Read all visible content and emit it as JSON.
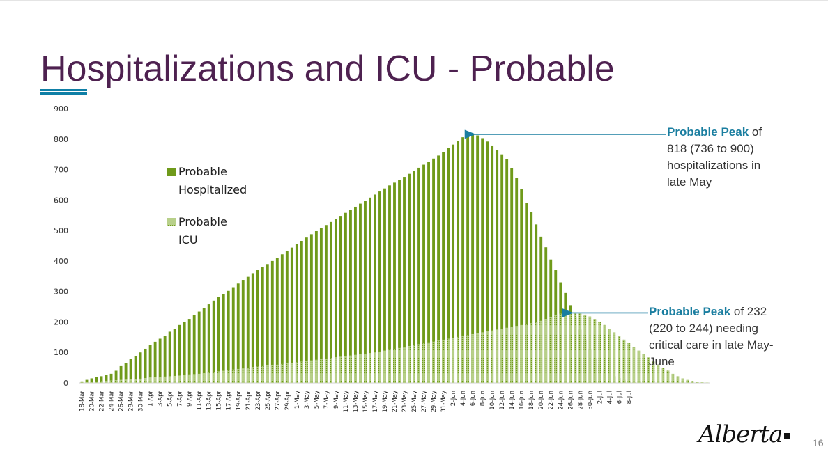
{
  "slide": {
    "title": "Hospitalizations and ICU - Probable",
    "page_number": "16",
    "logo_text": "Alberta"
  },
  "legend": [
    {
      "label_line1": "Probable",
      "label_line2": "Hospitalized",
      "pattern": "solid",
      "color": "#6f9a1a"
    },
    {
      "label_line1": "Probable",
      "label_line2": "ICU",
      "pattern": "dotted",
      "color": "#b8d08a"
    }
  ],
  "annotations": {
    "hosp_peak": {
      "bold": "Probable Peak",
      "text": "of 818 (736 to 900) hospitalizations in late May"
    },
    "icu_peak": {
      "bold": "Probable Peak",
      "text": "of 232 (220 to 244) needing critical care in late May-June"
    }
  },
  "colors": {
    "hospitalized": "#6f9a1a",
    "icu": "#b8d08a",
    "arrow": "#1a7ea0",
    "title": "#4e2150"
  },
  "chart_data": {
    "type": "bar",
    "title": "",
    "xlabel": "",
    "ylabel": "",
    "ylim": [
      0,
      900
    ],
    "yticks": [
      0,
      100,
      200,
      300,
      400,
      500,
      600,
      700,
      800,
      900
    ],
    "start_date": "18-Mar",
    "tick_labels": [
      "18-Mar",
      "20-Mar",
      "22-Mar",
      "24-Mar",
      "26-Mar",
      "28-Mar",
      "30-Mar",
      "1-Apr",
      "3-Apr",
      "5-Apr",
      "7-Apr",
      "9-Apr",
      "11-Apr",
      "13-Apr",
      "15-Apr",
      "17-Apr",
      "19-Apr",
      "21-Apr",
      "23-Apr",
      "25-Apr",
      "27-Apr",
      "29-Apr",
      "1-May",
      "3-May",
      "5-May",
      "7-May",
      "9-May",
      "11-May",
      "13-May",
      "15-May",
      "17-May",
      "19-May",
      "21-May",
      "23-May",
      "25-May",
      "27-May",
      "29-May",
      "31-May",
      "2-Jun",
      "4-Jun",
      "6-Jun",
      "8-Jun",
      "10-Jun",
      "12-Jun",
      "14-Jun",
      "16-Jun",
      "18-Jun",
      "20-Jun",
      "22-Jun",
      "24-Jun",
      "26-Jun",
      "28-Jun",
      "30-Jun",
      "2-Jul",
      "4-Jul",
      "6-Jul",
      "8-Jul"
    ],
    "series": [
      {
        "name": "Probable Hospitalized",
        "pattern": "solid",
        "values": [
          5,
          10,
          15,
          20,
          22,
          26,
          30,
          40,
          55,
          65,
          78,
          88,
          100,
          112,
          125,
          135,
          145,
          155,
          168,
          178,
          190,
          200,
          210,
          222,
          234,
          246,
          258,
          270,
          282,
          292,
          302,
          314,
          326,
          338,
          348,
          360,
          370,
          380,
          390,
          400,
          411,
          422,
          433,
          444,
          455,
          466,
          477,
          488,
          498,
          508,
          518,
          528,
          538,
          548,
          558,
          568,
          578,
          588,
          598,
          608,
          618,
          628,
          638,
          648,
          657,
          666,
          676,
          686,
          696,
          706,
          716,
          726,
          736,
          746,
          758,
          770,
          782,
          794,
          806,
          814,
          818,
          812,
          803,
          792,
          779,
          764,
          750,
          735,
          705,
          672,
          635,
          590,
          560,
          520,
          480,
          445,
          405,
          370,
          330,
          295,
          255,
          215,
          175,
          140,
          110,
          80,
          60,
          45,
          32,
          22,
          16,
          10,
          6,
          4,
          2,
          1
        ],
        "peak": 818,
        "peak_range": [
          736,
          900
        ]
      },
      {
        "name": "Probable ICU",
        "pattern": "dotted",
        "values": [
          2,
          3,
          4,
          5,
          6,
          7,
          8,
          9,
          10,
          11,
          12,
          13,
          14,
          16,
          18,
          19,
          20,
          21,
          22,
          23,
          24,
          26,
          28,
          29,
          30,
          32,
          34,
          36,
          38,
          40,
          42,
          44,
          46,
          48,
          50,
          52,
          54,
          55,
          57,
          58,
          60,
          62,
          64,
          66,
          68,
          70,
          72,
          74,
          76,
          78,
          80,
          82,
          84,
          86,
          88,
          90,
          92,
          94,
          96,
          98,
          100,
          103,
          106,
          109,
          112,
          115,
          118,
          121,
          124,
          127,
          130,
          133,
          136,
          139,
          142,
          145,
          148,
          151,
          154,
          157,
          160,
          163,
          166,
          169,
          172,
          175,
          178,
          181,
          184,
          187,
          190,
          193,
          196,
          199,
          204,
          210,
          216,
          222,
          227,
          230,
          232,
          231,
          228,
          224,
          218,
          210,
          200,
          190,
          178,
          166,
          154,
          142,
          130,
          118,
          106,
          95,
          84,
          72,
          60,
          50,
          40,
          30,
          22,
          15,
          10,
          6,
          4,
          2,
          1
        ],
        "peak": 232,
        "peak_range": [
          220,
          244
        ]
      }
    ]
  }
}
